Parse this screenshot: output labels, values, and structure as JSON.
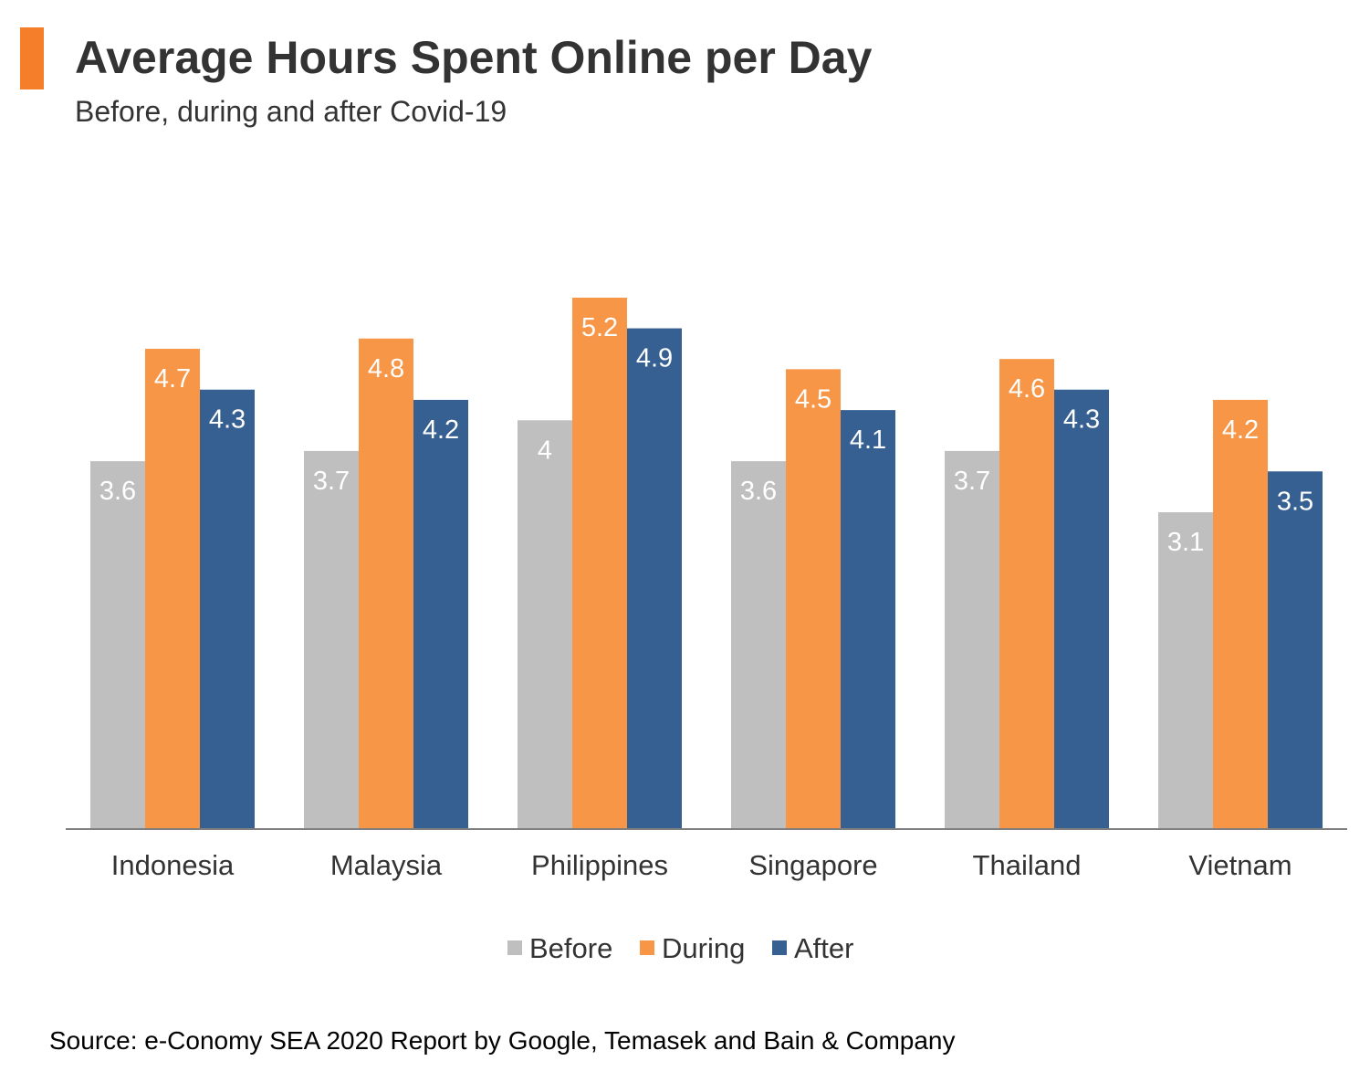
{
  "header": {
    "title": "Average Hours Spent Online per Day",
    "subtitle": "Before, during and after Covid-19"
  },
  "colors": {
    "accent": "#F47E2A",
    "before": "#BFBFBF",
    "during": "#F79646",
    "after": "#376092",
    "axis": "#7F7F7F",
    "text": "#333333"
  },
  "chart_data": {
    "type": "bar",
    "categories": [
      "Indonesia",
      "Malaysia",
      "Philippines",
      "Singapore",
      "Thailand",
      "Vietnam"
    ],
    "series": [
      {
        "name": "Before",
        "values": [
          3.6,
          3.7,
          4,
          3.6,
          3.7,
          3.1
        ]
      },
      {
        "name": "During",
        "values": [
          4.7,
          4.8,
          5.2,
          4.5,
          4.6,
          4.2
        ]
      },
      {
        "name": "After",
        "values": [
          4.3,
          4.2,
          4.9,
          4.1,
          4.3,
          3.5
        ]
      }
    ],
    "ylim": [
      0,
      5.2
    ],
    "grid": false,
    "legend": "bottom-center",
    "data_labels": true
  },
  "source": "Source: e-Conomy SEA 2020 Report by Google, Temasek and Bain & Company"
}
